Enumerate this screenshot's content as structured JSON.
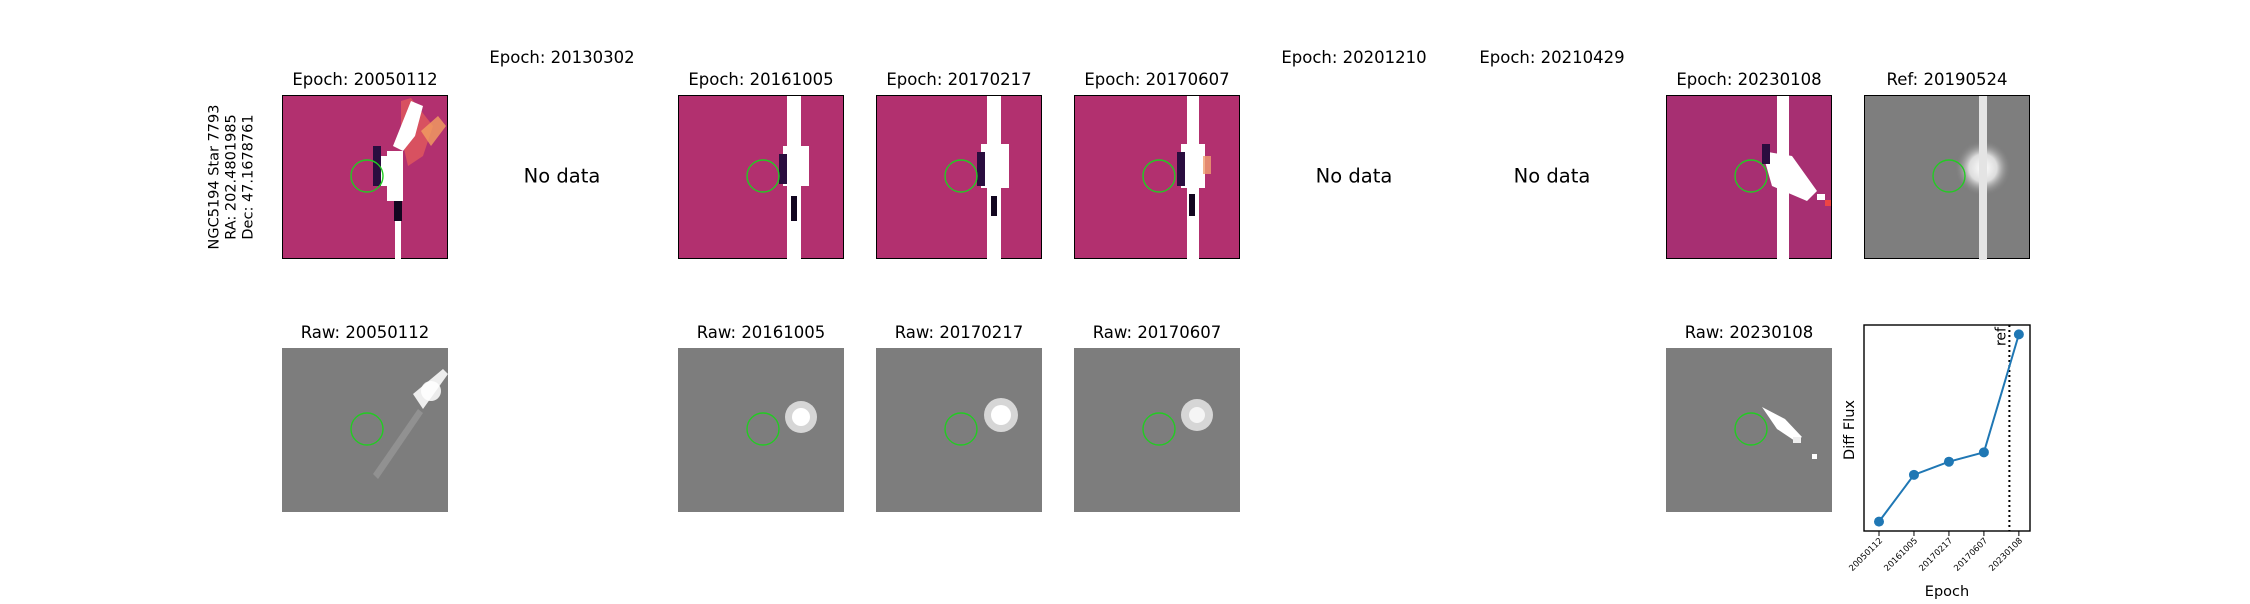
{
  "star_label": {
    "line1": "NGC5194 Star 7793",
    "line2": "RA: 202.4801985",
    "line3": "Dec: 47.1678761"
  },
  "top_row": [
    {
      "title": "Epoch: 20050112",
      "state": "data"
    },
    {
      "title": "Epoch: 20130302",
      "state": "no-data",
      "no_data_text": "No data"
    },
    {
      "title": "Epoch: 20161005",
      "state": "data"
    },
    {
      "title": "Epoch: 20170217",
      "state": "data"
    },
    {
      "title": "Epoch: 20170607",
      "state": "data"
    },
    {
      "title": "Epoch: 20201210",
      "state": "no-data",
      "no_data_text": "No data"
    },
    {
      "title": "Epoch: 20210429",
      "state": "no-data",
      "no_data_text": "No data"
    },
    {
      "title": "Epoch: 20230108",
      "state": "data"
    },
    {
      "title": "Ref: 20190524",
      "state": "reference"
    }
  ],
  "bottom_row": [
    {
      "title": "Raw: 20050112"
    },
    {
      "title": "Raw: 20161005"
    },
    {
      "title": "Raw: 20170217"
    },
    {
      "title": "Raw: 20170607"
    },
    {
      "title": "Raw: 20230108"
    }
  ],
  "colors": {
    "diff_background": "#b2306f",
    "raw_background": "#7d7d7d",
    "aperture_circle": "#22cc22",
    "series_line": "#1f77b4"
  },
  "chart_data": {
    "type": "line",
    "x": [
      "20050112",
      "20161005",
      "20170217",
      "20170607",
      "20230108"
    ],
    "series": [
      {
        "values": [
          0.05,
          0.3,
          0.37,
          0.42,
          1.05
        ]
      }
    ],
    "xlabel": "Epoch",
    "ylabel": "Diff Flux",
    "y_ticks_shown": false,
    "reference_line": {
      "after": "20170607",
      "label": "ref",
      "style": "dotted"
    },
    "ylim": [
      0.0,
      1.1
    ],
    "grid": false
  }
}
